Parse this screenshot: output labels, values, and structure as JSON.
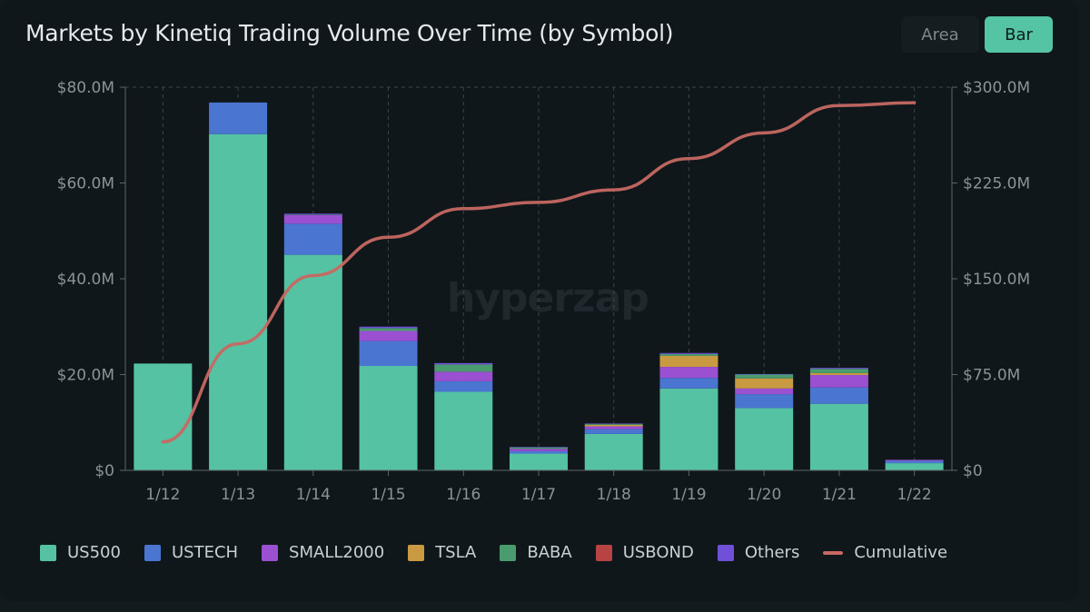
{
  "header": {
    "title": "Markets by Kinetiq Trading Volume Over Time (by Symbol)",
    "toggle_area": "Area",
    "toggle_bar": "Bar"
  },
  "watermark": "hyperzap",
  "chart_data": {
    "type": "bar",
    "stacked": true,
    "title": "Markets by Kinetiq Trading Volume Over Time (by Symbol)",
    "categories": [
      "1/12",
      "1/13",
      "1/14",
      "1/15",
      "1/16",
      "1/17",
      "1/18",
      "1/19",
      "1/20",
      "1/21",
      "1/22"
    ],
    "ylim": [
      0,
      80
    ],
    "y2lim": [
      0,
      300
    ],
    "y_ticks": [
      0,
      20,
      40,
      60,
      80
    ],
    "y_tick_labels": [
      "$0",
      "$20.0M",
      "$40.0M",
      "$60.0M",
      "$80.0M"
    ],
    "y2_ticks": [
      0,
      75,
      150,
      225,
      300
    ],
    "y2_tick_labels": [
      "$0",
      "$75.0M",
      "$150.0M",
      "$225.0M",
      "$300.0M"
    ],
    "series": [
      {
        "name": "US500",
        "color": "#56c2a4",
        "values": [
          22.3,
          70.2,
          45.0,
          21.8,
          16.4,
          3.5,
          7.6,
          17.1,
          13.0,
          13.9,
          1.5
        ]
      },
      {
        "name": "USTECH",
        "color": "#4a76d2",
        "values": [
          0,
          6.6,
          6.5,
          5.2,
          2.2,
          0.5,
          1.0,
          2.2,
          2.9,
          3.4,
          0.5
        ]
      },
      {
        "name": "SMALL2000",
        "color": "#9b4fd1",
        "values": [
          0,
          0,
          1.8,
          2.1,
          2.0,
          0.5,
          0.6,
          2.3,
          1.2,
          2.6,
          0.2
        ]
      },
      {
        "name": "TSLA",
        "color": "#c99a41",
        "values": [
          0,
          0,
          0,
          0,
          0,
          0,
          0.3,
          2.3,
          2.1,
          0.4,
          0
        ]
      },
      {
        "name": "BABA",
        "color": "#4a9b6d",
        "values": [
          0,
          0,
          0.1,
          0.6,
          1.5,
          0.3,
          0.2,
          0.4,
          0.8,
          0.9,
          0
        ]
      },
      {
        "name": "USBOND",
        "color": "#b84343",
        "values": [
          0,
          0,
          0,
          0,
          0,
          0,
          0,
          0,
          0,
          0,
          0
        ]
      },
      {
        "name": "Others",
        "color": "#6f50d6",
        "values": [
          0,
          0,
          0.2,
          0.3,
          0.3,
          0.1,
          0.1,
          0.2,
          0.1,
          0.2,
          0
        ]
      }
    ],
    "line_series": {
      "name": "Cumulative",
      "color": "#c76862",
      "axis": "right",
      "values": [
        22.3,
        99.1,
        152.5,
        182.5,
        204.9,
        209.8,
        219.6,
        244.1,
        264.2,
        285.6,
        287.8
      ]
    },
    "legend": [
      "US500",
      "USTECH",
      "SMALL2000",
      "TSLA",
      "BABA",
      "USBOND",
      "Others",
      "Cumulative"
    ],
    "legend_position": "bottom"
  }
}
